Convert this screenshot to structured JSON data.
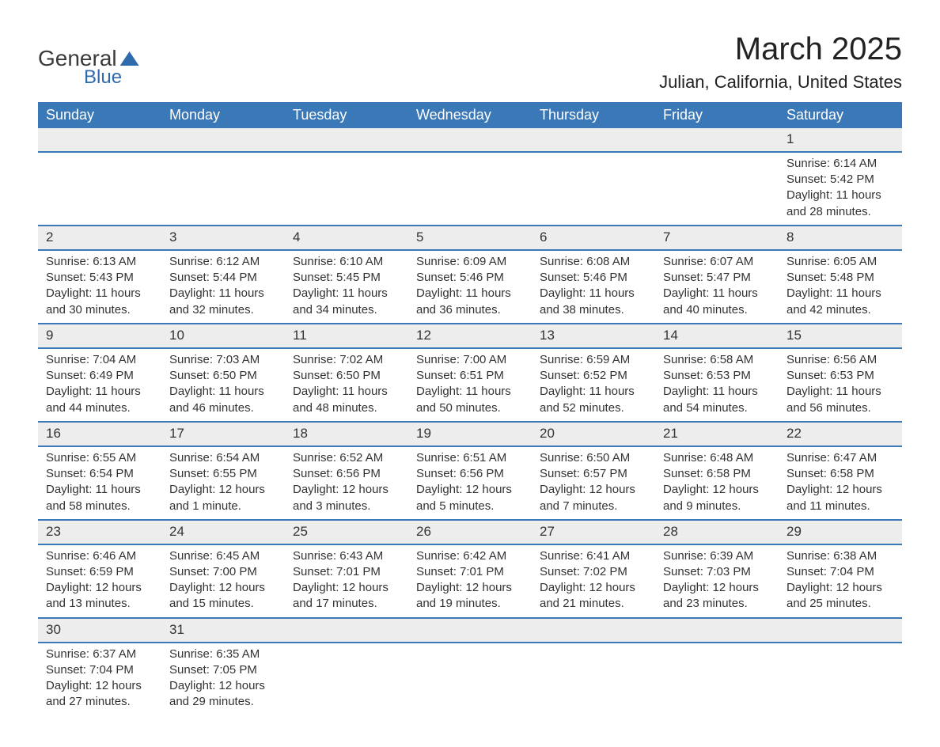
{
  "logo": {
    "text_general": "General",
    "text_blue": "Blue"
  },
  "title": "March 2025",
  "location": "Julian, California, United States",
  "colors": {
    "header_bg": "#3a78b8",
    "header_text": "#ffffff",
    "daynum_bg": "#ededed",
    "border": "#3a78b8",
    "text": "#333333",
    "logo_blue": "#2f6aad",
    "page_bg": "#ffffff"
  },
  "typography": {
    "title_fontsize": 40,
    "location_fontsize": 22,
    "dayheader_fontsize": 18,
    "daynum_fontsize": 17,
    "body_fontsize": 15,
    "font_family": "Arial"
  },
  "calendar": {
    "type": "table",
    "day_headers": [
      "Sunday",
      "Monday",
      "Tuesday",
      "Wednesday",
      "Thursday",
      "Friday",
      "Saturday"
    ],
    "weeks": [
      [
        null,
        null,
        null,
        null,
        null,
        null,
        {
          "n": "1",
          "sunrise": "Sunrise: 6:14 AM",
          "sunset": "Sunset: 5:42 PM",
          "day1": "Daylight: 11 hours",
          "day2": "and 28 minutes."
        }
      ],
      [
        {
          "n": "2",
          "sunrise": "Sunrise: 6:13 AM",
          "sunset": "Sunset: 5:43 PM",
          "day1": "Daylight: 11 hours",
          "day2": "and 30 minutes."
        },
        {
          "n": "3",
          "sunrise": "Sunrise: 6:12 AM",
          "sunset": "Sunset: 5:44 PM",
          "day1": "Daylight: 11 hours",
          "day2": "and 32 minutes."
        },
        {
          "n": "4",
          "sunrise": "Sunrise: 6:10 AM",
          "sunset": "Sunset: 5:45 PM",
          "day1": "Daylight: 11 hours",
          "day2": "and 34 minutes."
        },
        {
          "n": "5",
          "sunrise": "Sunrise: 6:09 AM",
          "sunset": "Sunset: 5:46 PM",
          "day1": "Daylight: 11 hours",
          "day2": "and 36 minutes."
        },
        {
          "n": "6",
          "sunrise": "Sunrise: 6:08 AM",
          "sunset": "Sunset: 5:46 PM",
          "day1": "Daylight: 11 hours",
          "day2": "and 38 minutes."
        },
        {
          "n": "7",
          "sunrise": "Sunrise: 6:07 AM",
          "sunset": "Sunset: 5:47 PM",
          "day1": "Daylight: 11 hours",
          "day2": "and 40 minutes."
        },
        {
          "n": "8",
          "sunrise": "Sunrise: 6:05 AM",
          "sunset": "Sunset: 5:48 PM",
          "day1": "Daylight: 11 hours",
          "day2": "and 42 minutes."
        }
      ],
      [
        {
          "n": "9",
          "sunrise": "Sunrise: 7:04 AM",
          "sunset": "Sunset: 6:49 PM",
          "day1": "Daylight: 11 hours",
          "day2": "and 44 minutes."
        },
        {
          "n": "10",
          "sunrise": "Sunrise: 7:03 AM",
          "sunset": "Sunset: 6:50 PM",
          "day1": "Daylight: 11 hours",
          "day2": "and 46 minutes."
        },
        {
          "n": "11",
          "sunrise": "Sunrise: 7:02 AM",
          "sunset": "Sunset: 6:50 PM",
          "day1": "Daylight: 11 hours",
          "day2": "and 48 minutes."
        },
        {
          "n": "12",
          "sunrise": "Sunrise: 7:00 AM",
          "sunset": "Sunset: 6:51 PM",
          "day1": "Daylight: 11 hours",
          "day2": "and 50 minutes."
        },
        {
          "n": "13",
          "sunrise": "Sunrise: 6:59 AM",
          "sunset": "Sunset: 6:52 PM",
          "day1": "Daylight: 11 hours",
          "day2": "and 52 minutes."
        },
        {
          "n": "14",
          "sunrise": "Sunrise: 6:58 AM",
          "sunset": "Sunset: 6:53 PM",
          "day1": "Daylight: 11 hours",
          "day2": "and 54 minutes."
        },
        {
          "n": "15",
          "sunrise": "Sunrise: 6:56 AM",
          "sunset": "Sunset: 6:53 PM",
          "day1": "Daylight: 11 hours",
          "day2": "and 56 minutes."
        }
      ],
      [
        {
          "n": "16",
          "sunrise": "Sunrise: 6:55 AM",
          "sunset": "Sunset: 6:54 PM",
          "day1": "Daylight: 11 hours",
          "day2": "and 58 minutes."
        },
        {
          "n": "17",
          "sunrise": "Sunrise: 6:54 AM",
          "sunset": "Sunset: 6:55 PM",
          "day1": "Daylight: 12 hours",
          "day2": "and 1 minute."
        },
        {
          "n": "18",
          "sunrise": "Sunrise: 6:52 AM",
          "sunset": "Sunset: 6:56 PM",
          "day1": "Daylight: 12 hours",
          "day2": "and 3 minutes."
        },
        {
          "n": "19",
          "sunrise": "Sunrise: 6:51 AM",
          "sunset": "Sunset: 6:56 PM",
          "day1": "Daylight: 12 hours",
          "day2": "and 5 minutes."
        },
        {
          "n": "20",
          "sunrise": "Sunrise: 6:50 AM",
          "sunset": "Sunset: 6:57 PM",
          "day1": "Daylight: 12 hours",
          "day2": "and 7 minutes."
        },
        {
          "n": "21",
          "sunrise": "Sunrise: 6:48 AM",
          "sunset": "Sunset: 6:58 PM",
          "day1": "Daylight: 12 hours",
          "day2": "and 9 minutes."
        },
        {
          "n": "22",
          "sunrise": "Sunrise: 6:47 AM",
          "sunset": "Sunset: 6:58 PM",
          "day1": "Daylight: 12 hours",
          "day2": "and 11 minutes."
        }
      ],
      [
        {
          "n": "23",
          "sunrise": "Sunrise: 6:46 AM",
          "sunset": "Sunset: 6:59 PM",
          "day1": "Daylight: 12 hours",
          "day2": "and 13 minutes."
        },
        {
          "n": "24",
          "sunrise": "Sunrise: 6:45 AM",
          "sunset": "Sunset: 7:00 PM",
          "day1": "Daylight: 12 hours",
          "day2": "and 15 minutes."
        },
        {
          "n": "25",
          "sunrise": "Sunrise: 6:43 AM",
          "sunset": "Sunset: 7:01 PM",
          "day1": "Daylight: 12 hours",
          "day2": "and 17 minutes."
        },
        {
          "n": "26",
          "sunrise": "Sunrise: 6:42 AM",
          "sunset": "Sunset: 7:01 PM",
          "day1": "Daylight: 12 hours",
          "day2": "and 19 minutes."
        },
        {
          "n": "27",
          "sunrise": "Sunrise: 6:41 AM",
          "sunset": "Sunset: 7:02 PM",
          "day1": "Daylight: 12 hours",
          "day2": "and 21 minutes."
        },
        {
          "n": "28",
          "sunrise": "Sunrise: 6:39 AM",
          "sunset": "Sunset: 7:03 PM",
          "day1": "Daylight: 12 hours",
          "day2": "and 23 minutes."
        },
        {
          "n": "29",
          "sunrise": "Sunrise: 6:38 AM",
          "sunset": "Sunset: 7:04 PM",
          "day1": "Daylight: 12 hours",
          "day2": "and 25 minutes."
        }
      ],
      [
        {
          "n": "30",
          "sunrise": "Sunrise: 6:37 AM",
          "sunset": "Sunset: 7:04 PM",
          "day1": "Daylight: 12 hours",
          "day2": "and 27 minutes."
        },
        {
          "n": "31",
          "sunrise": "Sunrise: 6:35 AM",
          "sunset": "Sunset: 7:05 PM",
          "day1": "Daylight: 12 hours",
          "day2": "and 29 minutes."
        },
        null,
        null,
        null,
        null,
        null
      ]
    ]
  }
}
